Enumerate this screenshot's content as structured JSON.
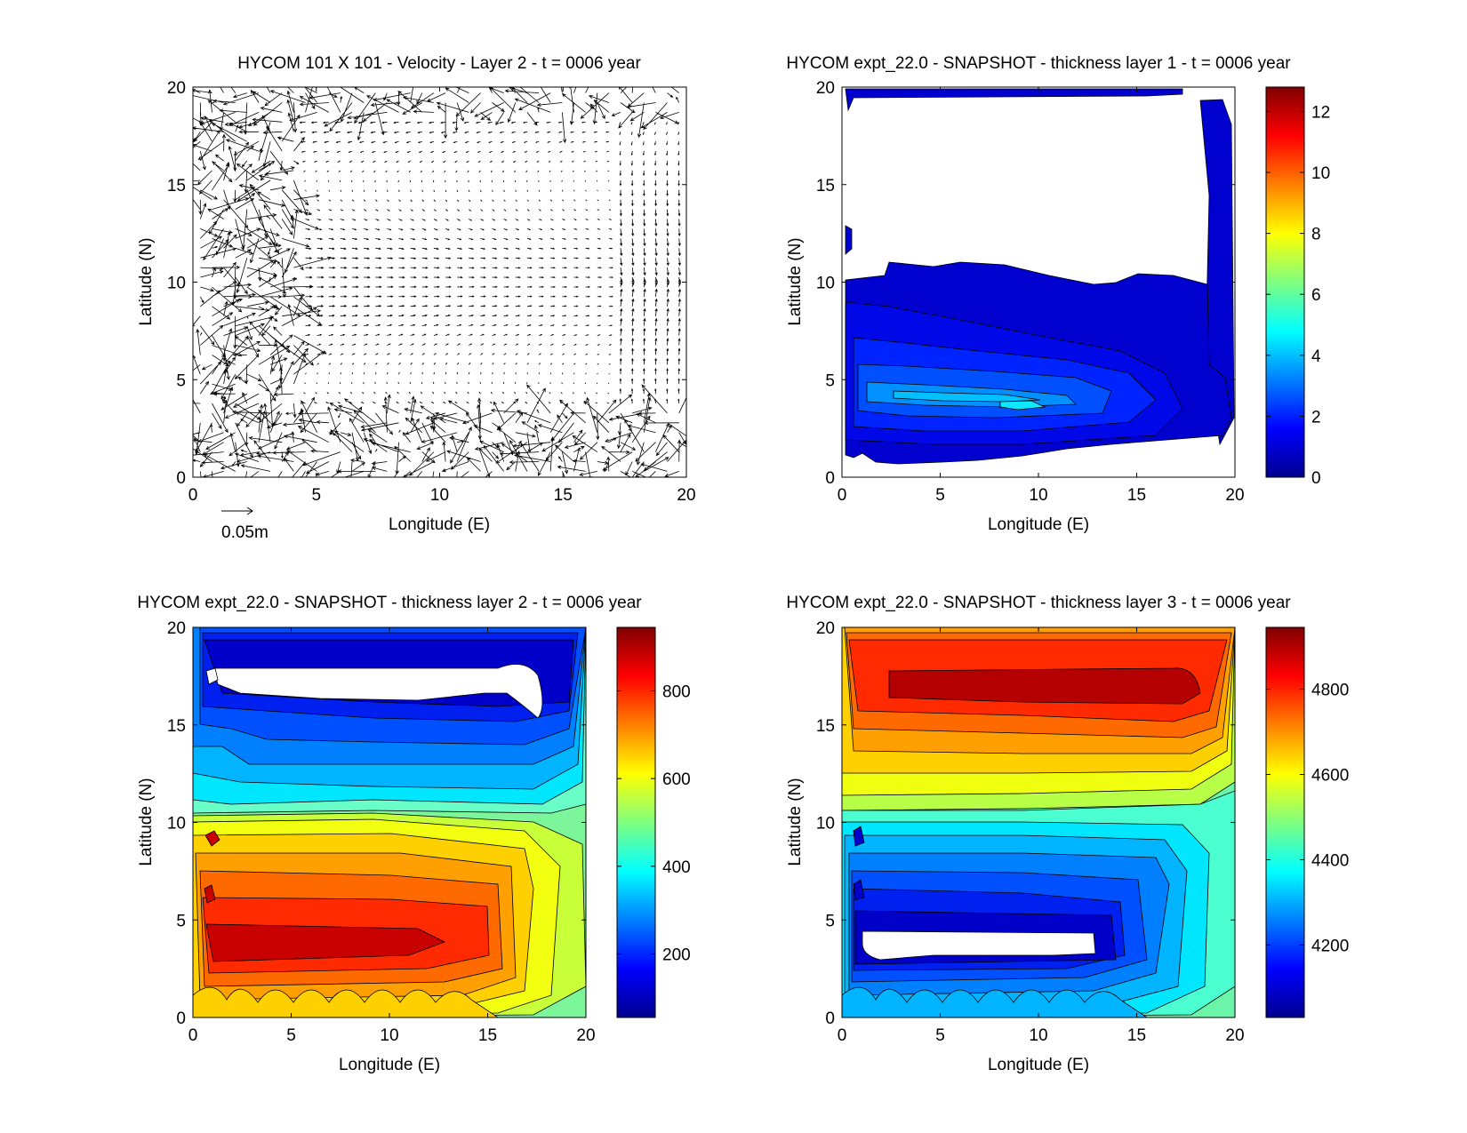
{
  "chart_data": [
    {
      "type": "quiver",
      "title": "HYCOM 101 X 101 - Velocity - Layer 2 - t = 0006 year",
      "xlabel": "Longitude (E)",
      "ylabel": "Latitude (N)",
      "xlim": [
        0,
        20
      ],
      "ylim": [
        0,
        20
      ],
      "xticks": [
        0,
        5,
        10,
        15,
        20
      ],
      "yticks": [
        0,
        5,
        10,
        15,
        20
      ],
      "scale_label": "0.05m"
    },
    {
      "type": "contourf",
      "title": "HYCOM expt_22.0 - SNAPSHOT - thickness layer 1 - t = 0006 year",
      "xlabel": "Longitude (E)",
      "ylabel": "Latitude (N)",
      "xlim": [
        0,
        20
      ],
      "ylim": [
        0,
        20
      ],
      "xticks": [
        0,
        5,
        10,
        15,
        20
      ],
      "yticks": [
        0,
        5,
        10,
        15,
        20
      ],
      "colorbar": {
        "range": [
          0,
          12.8
        ],
        "ticks": [
          0,
          2,
          4,
          6,
          8,
          10,
          12
        ]
      }
    },
    {
      "type": "contourf",
      "title": "HYCOM expt_22.0 - SNAPSHOT - thickness layer 2 - t = 0006 year",
      "xlabel": "Longitude (E)",
      "ylabel": "Latitude (N)",
      "xlim": [
        0,
        20
      ],
      "ylim": [
        0,
        20
      ],
      "xticks": [
        0,
        5,
        10,
        15,
        20
      ],
      "yticks": [
        0,
        5,
        10,
        15,
        20
      ],
      "colorbar": {
        "range": [
          55,
          945
        ],
        "ticks": [
          200,
          400,
          600,
          800
        ]
      }
    },
    {
      "type": "contourf",
      "title": "HYCOM expt_22.0 - SNAPSHOT - thickness layer 3 - t = 0006 year",
      "xlabel": "Longitude (E)",
      "ylabel": "Latitude (N)",
      "xlim": [
        0,
        20
      ],
      "ylim": [
        0,
        20
      ],
      "xticks": [
        0,
        5,
        10,
        15,
        20
      ],
      "yticks": [
        0,
        5,
        10,
        15,
        20
      ],
      "colorbar": {
        "range": [
          4030,
          4945
        ],
        "ticks": [
          4200,
          4400,
          4600,
          4800
        ]
      }
    }
  ]
}
